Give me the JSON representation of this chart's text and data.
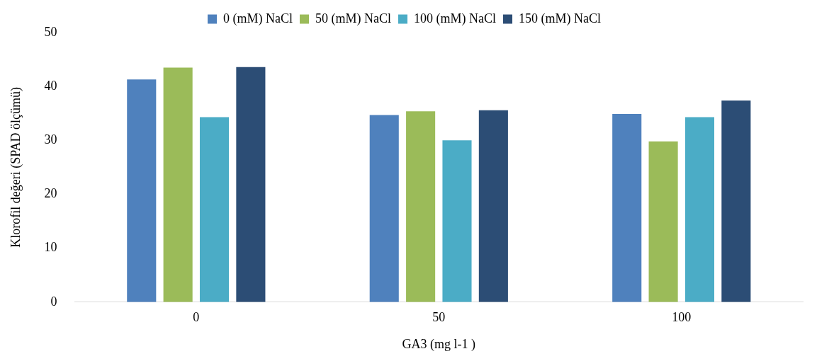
{
  "chart_data": {
    "type": "bar",
    "xlabel": "GA3 (mg l-1 )",
    "ylabel": "Klorofil değeri (SPAD ölçümü)",
    "categories": [
      "0",
      "50",
      "100"
    ],
    "series": [
      {
        "name": "0 (mM) NaCl",
        "color": "#4f81bd",
        "values": [
          41.3,
          34.7,
          34.9
        ]
      },
      {
        "name": "50 (mM) NaCl",
        "color": "#9bbb59",
        "values": [
          43.5,
          35.4,
          29.8
        ]
      },
      {
        "name": "100 (mM) NaCl",
        "color": "#4bacc6",
        "values": [
          34.3,
          30.0,
          34.3
        ]
      },
      {
        "name": "150 (mM) NaCl",
        "color": "#2c4d75",
        "values": [
          43.6,
          35.6,
          37.4
        ]
      }
    ],
    "ylim": [
      0,
      50
    ],
    "yticks": [
      0,
      10,
      20,
      30,
      40,
      50
    ],
    "grid": false,
    "legend": "top"
  }
}
